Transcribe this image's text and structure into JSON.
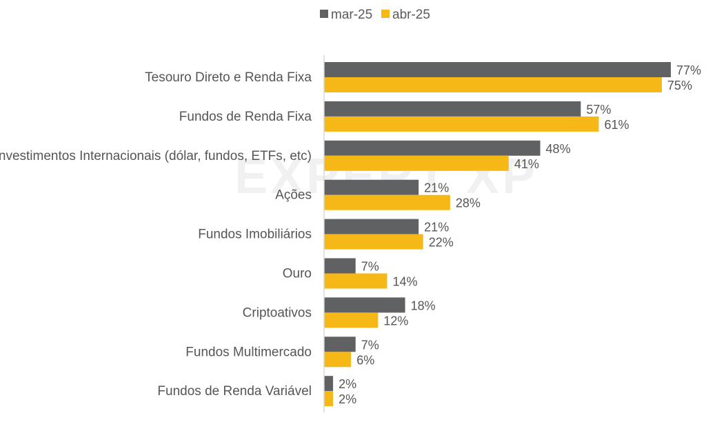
{
  "chart_data": {
    "type": "bar",
    "orientation": "horizontal",
    "legend_position": "top-center",
    "grid": false,
    "xlim": [
      0,
      80
    ],
    "watermark": "EXPERT XP",
    "categories": [
      "Tesouro Direto e Renda Fixa",
      "Fundos de Renda Fixa",
      "Investimentos Internacionais (dólar, fundos, ETFs, etc)",
      "Ações",
      "Fundos Imobiliários",
      "Ouro",
      "Criptoativos",
      "Fundos Multimercado",
      "Fundos de Renda Variável"
    ],
    "series": [
      {
        "name": "mar-25",
        "color": "#5f6163",
        "values": [
          77,
          57,
          48,
          21,
          21,
          7,
          18,
          7,
          2
        ],
        "labels": [
          "77%",
          "57%",
          "48%",
          "21%",
          "21%",
          "7%",
          "18%",
          "7%",
          "2%"
        ]
      },
      {
        "name": "abr-25",
        "color": "#f5b817",
        "values": [
          75,
          61,
          41,
          28,
          22,
          14,
          12,
          6,
          2
        ],
        "labels": [
          "75%",
          "61%",
          "41%",
          "28%",
          "22%",
          "14%",
          "12%",
          "6%",
          "2%"
        ]
      }
    ]
  }
}
